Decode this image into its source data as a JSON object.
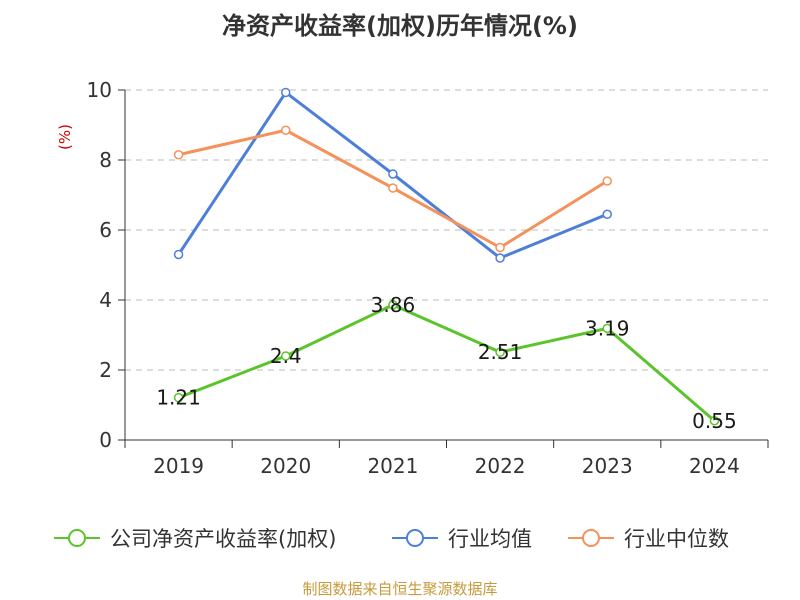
{
  "title": "净资产收益率(加权)历年情况(%)",
  "unit_label": "(%)",
  "source": "制图数据来自恒生聚源数据库",
  "colors": {
    "company": "#5cc42b",
    "industry_avg": "#4e7fd8",
    "industry_median": "#f5915a",
    "grid": "#bbbbbb",
    "axis": "#333333",
    "unit": "#cc0000",
    "source": "#c89a3c"
  },
  "chart_data": {
    "type": "line",
    "title": "净资产收益率(加权)历年情况(%)",
    "xlabel": "",
    "ylabel": "(%)",
    "categories": [
      "2019",
      "2020",
      "2021",
      "2022",
      "2023",
      "2024"
    ],
    "ylim": [
      0,
      10
    ],
    "yticks": [
      0,
      2,
      4,
      6,
      8,
      10
    ],
    "grid": true,
    "legend_position": "bottom",
    "series": [
      {
        "name": "公司净资产收益率(加权)",
        "color": "#5cc42b",
        "values": [
          1.21,
          2.4,
          3.86,
          2.51,
          3.19,
          0.55
        ],
        "labels": [
          "1.21",
          "2.4",
          "3.86",
          "2.51",
          "3.19",
          "0.55"
        ]
      },
      {
        "name": "行业均值",
        "color": "#4e7fd8",
        "values": [
          5.3,
          9.93,
          7.6,
          5.2,
          6.45,
          null
        ]
      },
      {
        "name": "行业中位数",
        "color": "#f5915a",
        "values": [
          8.15,
          8.85,
          7.2,
          5.5,
          7.4,
          null
        ]
      }
    ]
  }
}
